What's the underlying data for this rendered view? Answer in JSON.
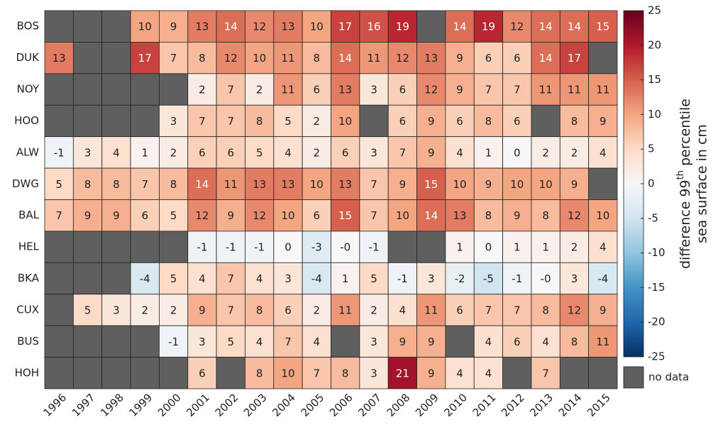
{
  "chart_data": {
    "type": "heatmap",
    "rows": [
      "BOS",
      "DUK",
      "NOY",
      "HOO",
      "ALW",
      "DWG",
      "BAL",
      "HEL",
      "BKA",
      "CUX",
      "BUS",
      "HOH"
    ],
    "columns": [
      "1996",
      "1997",
      "1998",
      "1999",
      "2000",
      "2001",
      "2002",
      "2003",
      "2004",
      "2005",
      "2006",
      "2007",
      "2008",
      "2009",
      "2010",
      "2011",
      "2012",
      "2013",
      "2014",
      "2015"
    ],
    "values": [
      [
        null,
        null,
        null,
        10,
        9,
        13,
        14,
        12,
        13,
        10,
        17,
        16,
        19,
        null,
        14,
        19,
        12,
        14,
        14,
        15
      ],
      [
        13,
        null,
        null,
        17,
        7,
        8,
        12,
        10,
        11,
        8,
        14,
        11,
        12,
        13,
        9,
        6,
        6,
        14,
        17,
        null
      ],
      [
        null,
        null,
        null,
        null,
        null,
        2,
        7,
        2,
        11,
        6,
        13,
        3,
        6,
        12,
        9,
        7,
        7,
        11,
        11,
        11
      ],
      [
        null,
        null,
        null,
        null,
        3,
        7,
        7,
        8,
        5,
        2,
        10,
        null,
        6,
        9,
        6,
        8,
        6,
        null,
        8,
        9
      ],
      [
        -1,
        3,
        4,
        1,
        2,
        6,
        6,
        5,
        4,
        2,
        6,
        3,
        7,
        9,
        4,
        1,
        0,
        2,
        2,
        4
      ],
      [
        5,
        8,
        8,
        7,
        8,
        14,
        11,
        13,
        13,
        10,
        13,
        7,
        9,
        15,
        10,
        9,
        10,
        10,
        9,
        null
      ],
      [
        7,
        9,
        9,
        6,
        5,
        12,
        9,
        12,
        10,
        6,
        15,
        7,
        10,
        14,
        13,
        8,
        9,
        8,
        12,
        10
      ],
      [
        null,
        null,
        null,
        null,
        null,
        -1,
        -1,
        -1,
        0,
        -3,
        0,
        -1,
        null,
        null,
        1,
        0,
        1,
        1,
        2,
        4
      ],
      [
        null,
        null,
        null,
        -4,
        5,
        4,
        7,
        4,
        3,
        -4,
        1,
        5,
        -1,
        3,
        -2,
        -5,
        -1,
        0,
        3,
        -4
      ],
      [
        null,
        5,
        3,
        2,
        2,
        9,
        7,
        8,
        6,
        2,
        11,
        2,
        4,
        11,
        6,
        7,
        7,
        8,
        12,
        9
      ],
      [
        null,
        null,
        null,
        null,
        -1,
        3,
        5,
        4,
        7,
        4,
        null,
        3,
        9,
        9,
        null,
        4,
        6,
        4,
        8,
        11
      ],
      [
        null,
        null,
        null,
        null,
        null,
        6,
        null,
        8,
        10,
        7,
        8,
        3,
        21,
        9,
        4,
        4,
        null,
        7,
        null,
        null
      ]
    ],
    "value_labels": [
      [
        null,
        null,
        null,
        "10",
        "9",
        "13",
        "14",
        "12",
        "13",
        "10",
        "17",
        "16",
        "19",
        null,
        "14",
        "19",
        "12",
        "14",
        "14",
        "15"
      ],
      [
        "13",
        null,
        null,
        "17",
        "7",
        "8",
        "12",
        "10",
        "11",
        "8",
        "14",
        "11",
        "12",
        "13",
        "9",
        "6",
        "6",
        "14",
        "17",
        null
      ],
      [
        null,
        null,
        null,
        null,
        null,
        "2",
        "7",
        "2",
        "11",
        "6",
        "13",
        "3",
        "6",
        "12",
        "9",
        "7",
        "7",
        "11",
        "11",
        "11"
      ],
      [
        null,
        null,
        null,
        null,
        "3",
        "7",
        "7",
        "8",
        "5",
        "2",
        "10",
        null,
        "6",
        "9",
        "6",
        "8",
        "6",
        null,
        "8",
        "9"
      ],
      [
        "-1",
        "3",
        "4",
        "1",
        "2",
        "6",
        "6",
        "5",
        "4",
        "2",
        "6",
        "3",
        "7",
        "9",
        "4",
        "1",
        "0",
        "2",
        "2",
        "4"
      ],
      [
        "5",
        "8",
        "8",
        "7",
        "8",
        "14",
        "11",
        "13",
        "13",
        "10",
        "13",
        "7",
        "9",
        "15",
        "10",
        "9",
        "10",
        "10",
        "9",
        null
      ],
      [
        "7",
        "9",
        "9",
        "6",
        "5",
        "12",
        "9",
        "12",
        "10",
        "6",
        "15",
        "7",
        "10",
        "14",
        "13",
        "8",
        "9",
        "8",
        "12",
        "10"
      ],
      [
        null,
        null,
        null,
        null,
        null,
        "-1",
        "-1",
        "-1",
        "0",
        "-3",
        "-0",
        "-1",
        null,
        null,
        "1",
        "0",
        "1",
        "1",
        "2",
        "4"
      ],
      [
        null,
        null,
        null,
        "-4",
        "5",
        "4",
        "7",
        "4",
        "3",
        "-4",
        "1",
        "5",
        "-1",
        "3",
        "-2",
        "-5",
        "-1",
        "-0",
        "3",
        "-4"
      ],
      [
        null,
        "5",
        "3",
        "2",
        "2",
        "9",
        "7",
        "8",
        "6",
        "2",
        "11",
        "2",
        "4",
        "11",
        "6",
        "7",
        "7",
        "8",
        "12",
        "9"
      ],
      [
        null,
        null,
        null,
        null,
        "-1",
        "3",
        "5",
        "4",
        "7",
        "4",
        null,
        "3",
        "9",
        "9",
        null,
        "4",
        "6",
        "4",
        "8",
        "11"
      ],
      [
        null,
        null,
        null,
        null,
        null,
        "6",
        null,
        "8",
        "10",
        "7",
        "8",
        "3",
        "21",
        "9",
        "4",
        "4",
        null,
        "7",
        null,
        null
      ]
    ],
    "colorbar": {
      "lim": [
        -25,
        25
      ],
      "ticks": [
        -25,
        -20,
        -15,
        -10,
        -5,
        0,
        5,
        10,
        15,
        20,
        25
      ],
      "colormap": [
        "#053061",
        "#2166ac",
        "#4393c3",
        "#92c5de",
        "#d1e5f0",
        "#f7f7f7",
        "#fddbc7",
        "#f4a582",
        "#d6604d",
        "#b2182b",
        "#67001f"
      ],
      "label": {
        "line1": "difference 99",
        "sup": "th",
        "line1_end": " percentile",
        "line2": "sea surface in cm"
      }
    },
    "missing_color": "#5f5f5f",
    "missing_label": "no data"
  }
}
